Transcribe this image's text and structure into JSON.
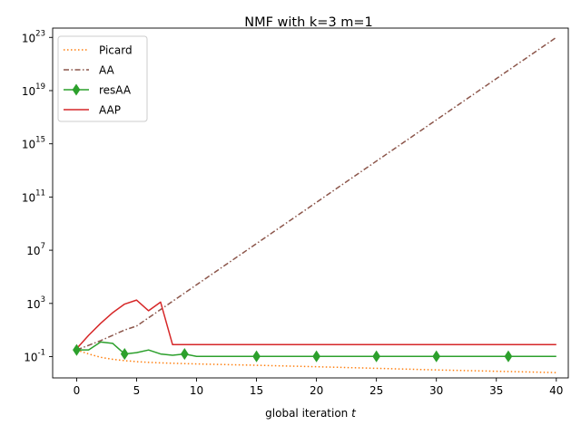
{
  "chart_data": {
    "type": "line",
    "title": "NMF with k=3 m=1",
    "xlabel": "global iteration",
    "xlabel_var": "t",
    "ylabel": "",
    "xlim": [
      -2,
      41
    ],
    "ylim_log10": [
      -2.6,
      23.7
    ],
    "yscale": "log",
    "x_ticks": [
      0,
      5,
      10,
      15,
      20,
      25,
      30,
      35,
      40
    ],
    "y_ticks": [
      {
        "base": "10",
        "exp": "-1",
        "value_log10": -1
      },
      {
        "base": "10",
        "exp": "3",
        "value_log10": 3
      },
      {
        "base": "10",
        "exp": "7",
        "value_log10": 7
      },
      {
        "base": "10",
        "exp": "11",
        "value_log10": 11
      },
      {
        "base": "10",
        "exp": "15",
        "value_log10": 15
      },
      {
        "base": "10",
        "exp": "19",
        "value_log10": 19
      },
      {
        "base": "10",
        "exp": "23",
        "value_log10": 23
      }
    ],
    "grid": false,
    "legend_position": "top-left",
    "series": [
      {
        "name": "Picard",
        "color": "#ff7f0e",
        "style": "dotted",
        "marker": "none",
        "x": [
          0,
          1,
          2,
          3,
          4,
          5,
          6,
          7,
          8,
          10,
          15,
          20,
          25,
          30,
          35,
          40
        ],
        "y_log10": [
          -0.5,
          -0.8,
          -1.05,
          -1.2,
          -1.3,
          -1.38,
          -1.43,
          -1.47,
          -1.5,
          -1.55,
          -1.65,
          -1.76,
          -1.88,
          -2.0,
          -2.1,
          -2.2
        ]
      },
      {
        "name": "AA",
        "color": "#8c564b",
        "style": "dashdot",
        "marker": "none",
        "x": [
          0,
          2,
          3,
          4,
          5,
          40
        ],
        "y_log10": [
          -0.5,
          0.2,
          0.6,
          1.0,
          1.3,
          23.0
        ]
      },
      {
        "name": "resAA",
        "color": "#2ca02c",
        "style": "solid",
        "marker": "diamond",
        "x": [
          0,
          1,
          2,
          3,
          4,
          5,
          6,
          7,
          8,
          9,
          10,
          15,
          20,
          25,
          30,
          36,
          40
        ],
        "y_log10": [
          -0.5,
          -0.5,
          0.1,
          0.0,
          -0.8,
          -0.7,
          -0.5,
          -0.8,
          -0.9,
          -0.8,
          -0.98,
          -0.98,
          -0.98,
          -0.98,
          -0.98,
          -0.98,
          -0.98
        ],
        "marker_x": [
          0,
          4,
          9,
          15,
          20,
          25,
          30,
          36
        ]
      },
      {
        "name": "AAP",
        "color": "#d62728",
        "style": "solid",
        "marker": "none",
        "x": [
          0,
          1,
          2,
          3,
          4,
          5,
          6,
          7,
          8,
          40
        ],
        "y_log10": [
          -0.4,
          0.6,
          1.5,
          2.3,
          2.95,
          3.25,
          2.45,
          3.1,
          -0.1,
          -0.1
        ]
      }
    ]
  }
}
